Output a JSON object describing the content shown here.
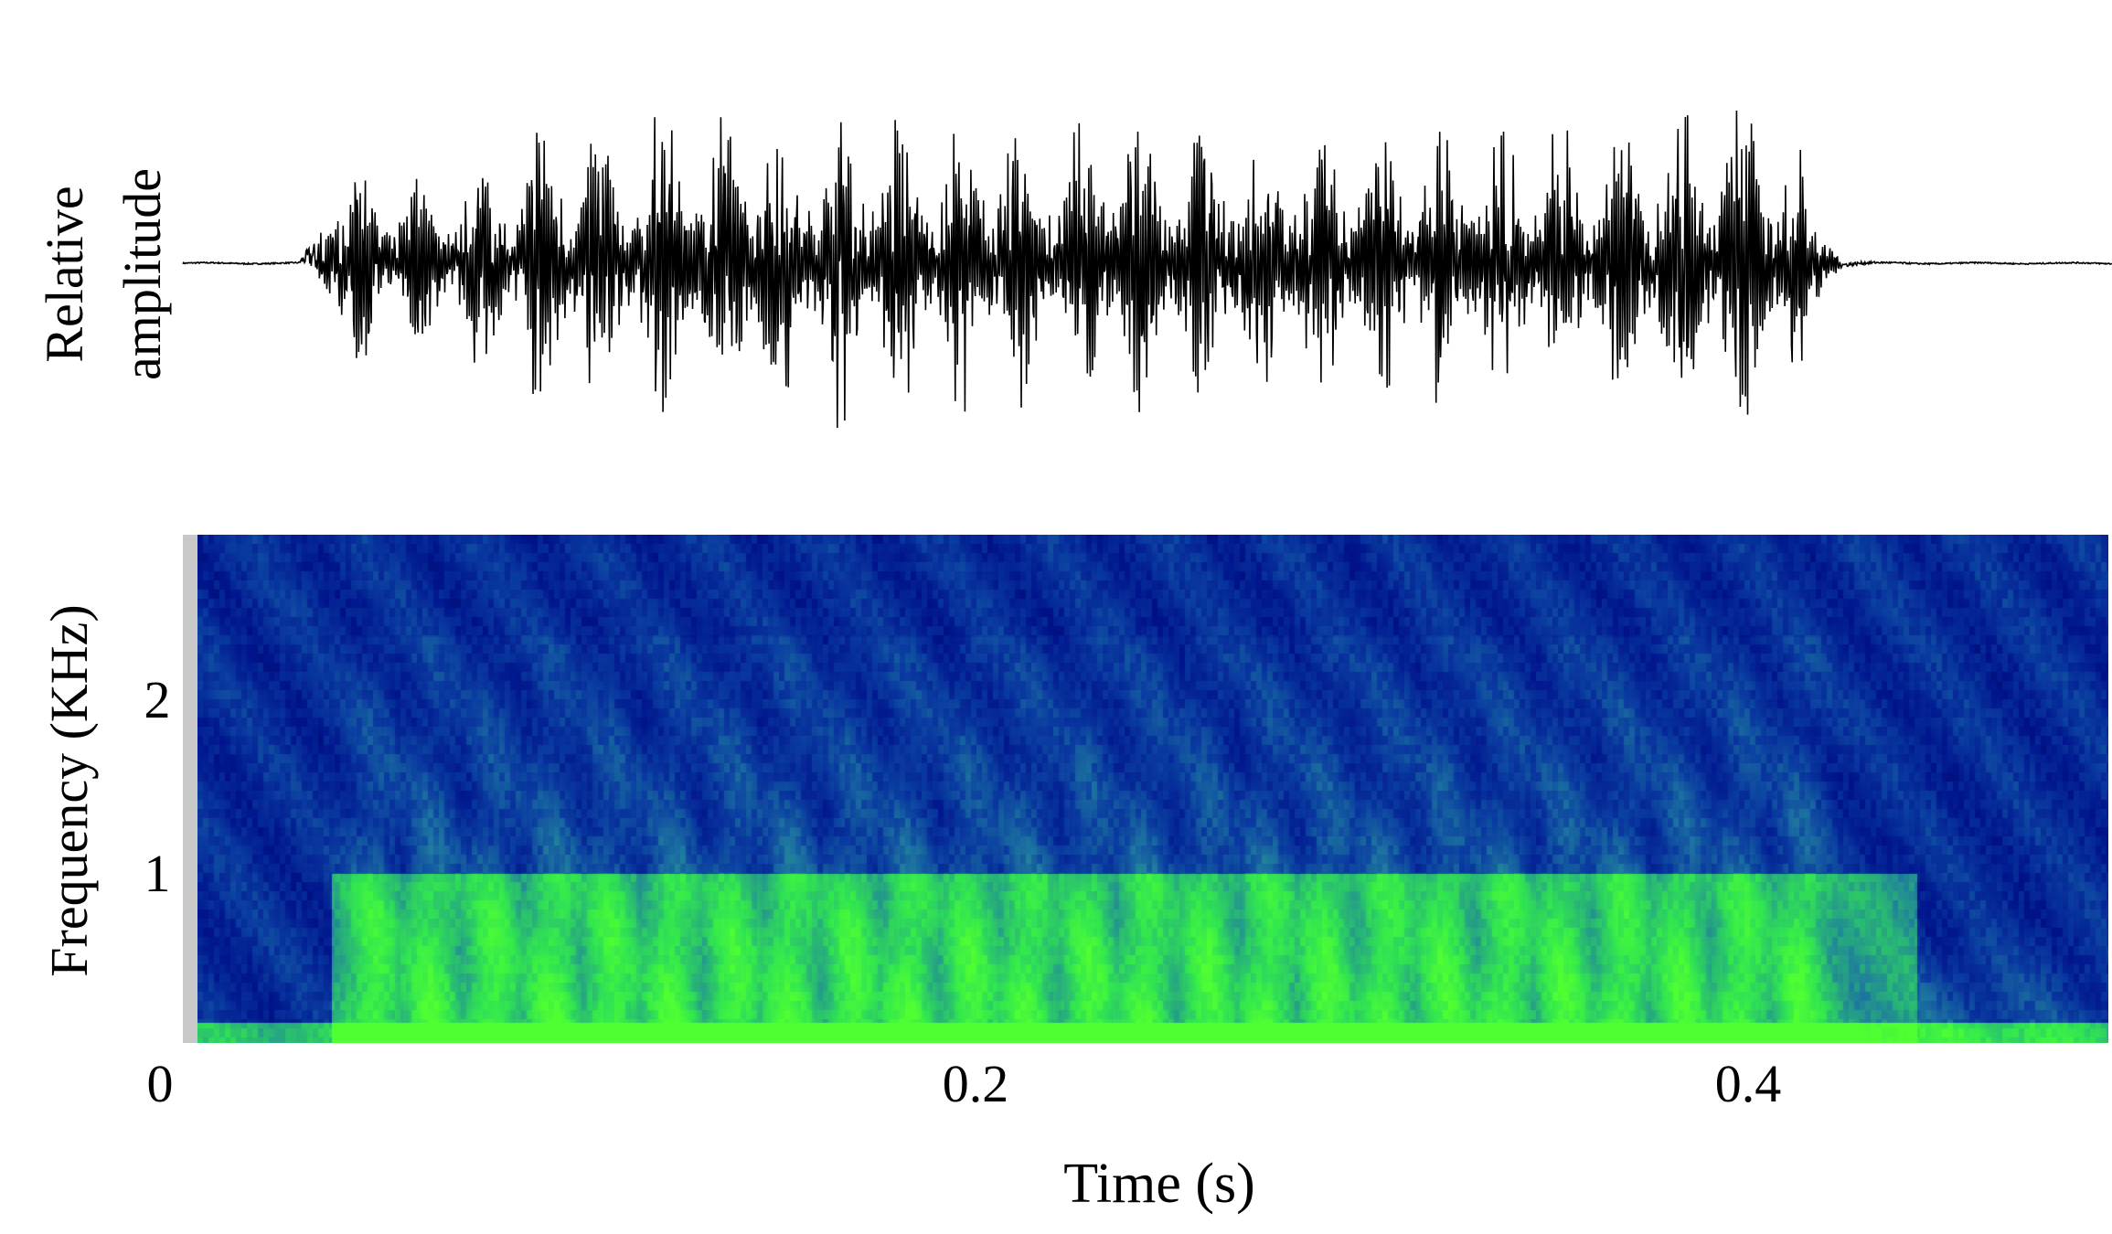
{
  "chart_data": [
    {
      "type": "line",
      "panel": "waveform",
      "ylabel": [
        "Relative",
        "amplitude"
      ],
      "xlim": [
        0,
        0.5
      ],
      "ylim": [
        -1,
        1
      ],
      "series": [
        {
          "values_note_x_unit": "s",
          "x": [
            0.0,
            0.03,
            0.034,
            0.04,
            0.05,
            0.06,
            0.07,
            0.08,
            0.09,
            0.1,
            0.11,
            0.12,
            0.13,
            0.14,
            0.15,
            0.16,
            0.17,
            0.18,
            0.19,
            0.2,
            0.21,
            0.22,
            0.23,
            0.24,
            0.25,
            0.26,
            0.27,
            0.28,
            0.29,
            0.3,
            0.31,
            0.32,
            0.33,
            0.34,
            0.35,
            0.36,
            0.37,
            0.38,
            0.39,
            0.4,
            0.41,
            0.42,
            0.43,
            0.44,
            0.45,
            0.5
          ],
          "envelope": [
            0.03,
            0.03,
            0.65,
            0.6,
            0.5,
            0.45,
            0.55,
            0.6,
            0.78,
            0.8,
            0.85,
            0.85,
            0.85,
            0.82,
            0.85,
            0.8,
            0.85,
            0.8,
            0.8,
            0.78,
            0.8,
            0.75,
            0.78,
            0.8,
            0.8,
            0.75,
            0.8,
            0.75,
            0.75,
            0.78,
            0.8,
            0.75,
            0.75,
            0.78,
            0.75,
            0.72,
            0.75,
            0.8,
            0.88,
            0.95,
            0.9,
            0.6,
            0.1,
            0.04,
            0.03,
            0.03
          ]
        }
      ]
    },
    {
      "type": "heatmap",
      "panel": "spectrogram",
      "xlabel": "Time (s)",
      "ylabel": "Frequency (KHz)",
      "xlim": [
        0,
        0.5
      ],
      "ylim": [
        0,
        3
      ],
      "x_ticks": [
        "0",
        "0.2",
        "0.4"
      ],
      "x_tick_values": [
        0,
        0.2,
        0.4
      ],
      "y_ticks": [
        "1",
        "2"
      ],
      "y_tick_values": [
        1,
        2
      ],
      "colormap": [
        "#00003a",
        "#00148c",
        "#0a3ca0",
        "#1e78a0",
        "#28b478",
        "#32e650",
        "#50ff32"
      ],
      "energy_band_khz": [
        0,
        1
      ],
      "pulse_times_s": [
        0.046,
        0.061,
        0.077,
        0.093,
        0.108,
        0.124,
        0.14,
        0.155,
        0.171,
        0.186,
        0.202,
        0.217,
        0.233,
        0.248,
        0.264,
        0.28,
        0.295,
        0.311,
        0.326,
        0.342,
        0.357,
        0.373,
        0.388,
        0.404,
        0.419
      ],
      "call_onset_s": 0.035,
      "call_offset_s": 0.43
    }
  ],
  "colors": {
    "trace": "#000000",
    "left_bar": "#c8c8c8"
  }
}
